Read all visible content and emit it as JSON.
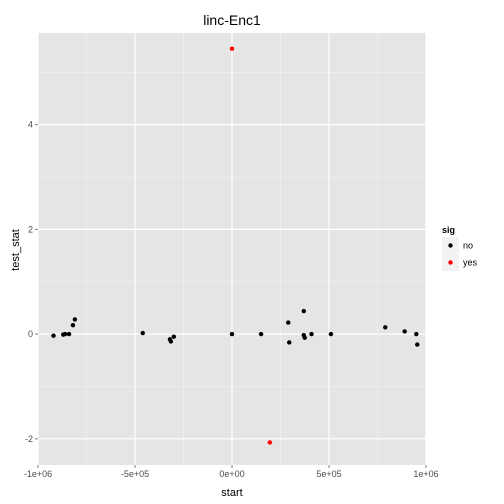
{
  "chart_data": {
    "type": "scatter",
    "title": "linc-Enc1",
    "xlabel": "start",
    "ylabel": "test_stat",
    "xlim": [
      -1000000,
      1000000
    ],
    "ylim": [
      -2.5,
      5.75
    ],
    "x_ticks": [
      -1000000,
      -500000,
      0,
      500000,
      1000000
    ],
    "x_tick_labels": [
      "-1e+06",
      "-5e+05",
      "0e+00",
      "5e+05",
      "1e+06"
    ],
    "y_ticks": [
      -2,
      0,
      2,
      4
    ],
    "y_tick_labels": [
      "-2",
      "0",
      "2",
      "4"
    ],
    "grid": true,
    "legend": {
      "title": "sig",
      "position": "right",
      "entries": [
        {
          "label": "no",
          "color": "#000000"
        },
        {
          "label": "yes",
          "color": "#ff0000"
        }
      ]
    },
    "series": [
      {
        "name": "no",
        "color": "#000000",
        "points": [
          {
            "x": -920000,
            "y": -0.03
          },
          {
            "x": -870000,
            "y": -0.01
          },
          {
            "x": -860000,
            "y": 0.0
          },
          {
            "x": -840000,
            "y": 0.0
          },
          {
            "x": -820000,
            "y": 0.17
          },
          {
            "x": -810000,
            "y": 0.28
          },
          {
            "x": -460000,
            "y": 0.02
          },
          {
            "x": -320000,
            "y": -0.1
          },
          {
            "x": -315000,
            "y": -0.14
          },
          {
            "x": -300000,
            "y": -0.05
          },
          {
            "x": 0,
            "y": 0.0
          },
          {
            "x": 150000,
            "y": 0.0
          },
          {
            "x": 290000,
            "y": 0.22
          },
          {
            "x": 295000,
            "y": -0.16
          },
          {
            "x": 370000,
            "y": 0.44
          },
          {
            "x": 370000,
            "y": -0.02
          },
          {
            "x": 375000,
            "y": -0.07
          },
          {
            "x": 410000,
            "y": 0.0
          },
          {
            "x": 510000,
            "y": 0.0
          },
          {
            "x": 790000,
            "y": 0.13
          },
          {
            "x": 890000,
            "y": 0.05
          },
          {
            "x": 950000,
            "y": 0.0
          },
          {
            "x": 955000,
            "y": -0.2
          }
        ]
      },
      {
        "name": "yes",
        "color": "#ff0000",
        "points": [
          {
            "x": 0,
            "y": 5.45
          },
          {
            "x": 195000,
            "y": -2.07
          }
        ]
      }
    ]
  },
  "colors": {
    "panel_background": "#e5e5e5",
    "grid_major": "#ffffff",
    "grid_minor": "#f2f2f2",
    "legend_key_background": "#f2f2f2"
  }
}
